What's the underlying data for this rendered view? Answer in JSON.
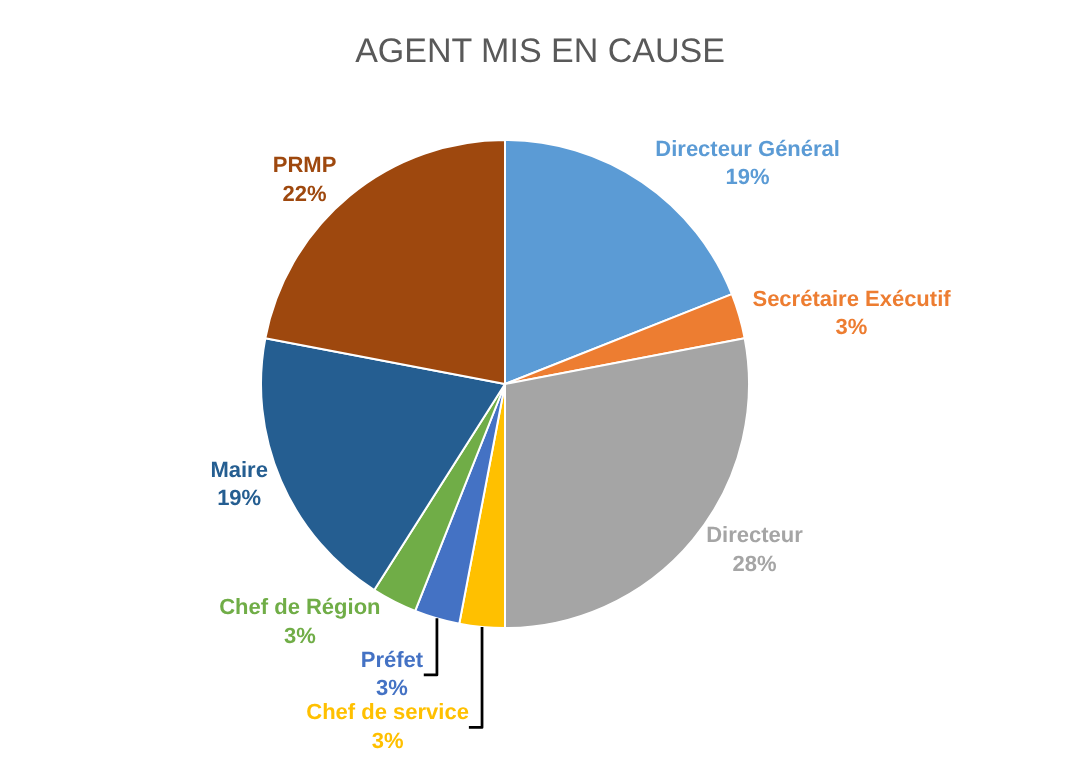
{
  "chart_data": {
    "type": "pie",
    "title": "AGENT MIS EN CAUSE",
    "categories": [
      "Directeur Général",
      "Secrétaire Exécutif",
      "Directeur",
      "Chef de service",
      "Préfet",
      "Chef de Région",
      "Maire",
      "PRMP"
    ],
    "values": [
      19,
      3,
      28,
      3,
      3,
      3,
      19,
      22
    ],
    "value_labels": [
      "19%",
      "3%",
      "28%",
      "3%",
      "3%",
      "3%",
      "19%",
      "22%"
    ],
    "colors": [
      "#5b9bd5",
      "#ed7d31",
      "#a5a5a5",
      "#ffc000",
      "#4472c4",
      "#70ad47",
      "#255e91",
      "#9e480e"
    ],
    "legend": false
  }
}
